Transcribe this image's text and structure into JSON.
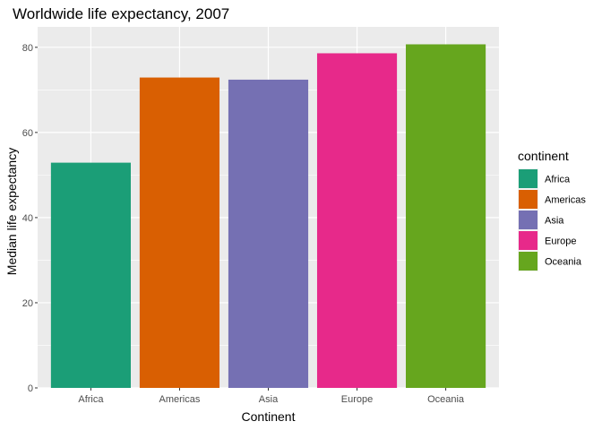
{
  "chart_data": {
    "type": "bar",
    "title": "Worldwide life expectancy, 2007",
    "xlabel": "Continent",
    "ylabel": "Median life expectancy",
    "categories": [
      "Africa",
      "Americas",
      "Asia",
      "Europe",
      "Oceania"
    ],
    "values": [
      52.9,
      72.9,
      72.4,
      78.6,
      80.7
    ],
    "colors": [
      "#1b9e77",
      "#d95f02",
      "#7570b3",
      "#e7298a",
      "#66a61e"
    ],
    "ylim": [
      0,
      84.8
    ],
    "yticks": [
      0,
      20,
      40,
      60,
      80
    ],
    "ytick_labels": [
      "0",
      "20",
      "40",
      "60",
      "80"
    ],
    "grid": true,
    "legend": {
      "title": "continent",
      "position": "right",
      "entries": [
        "Africa",
        "Americas",
        "Asia",
        "Europe",
        "Oceania"
      ]
    }
  }
}
